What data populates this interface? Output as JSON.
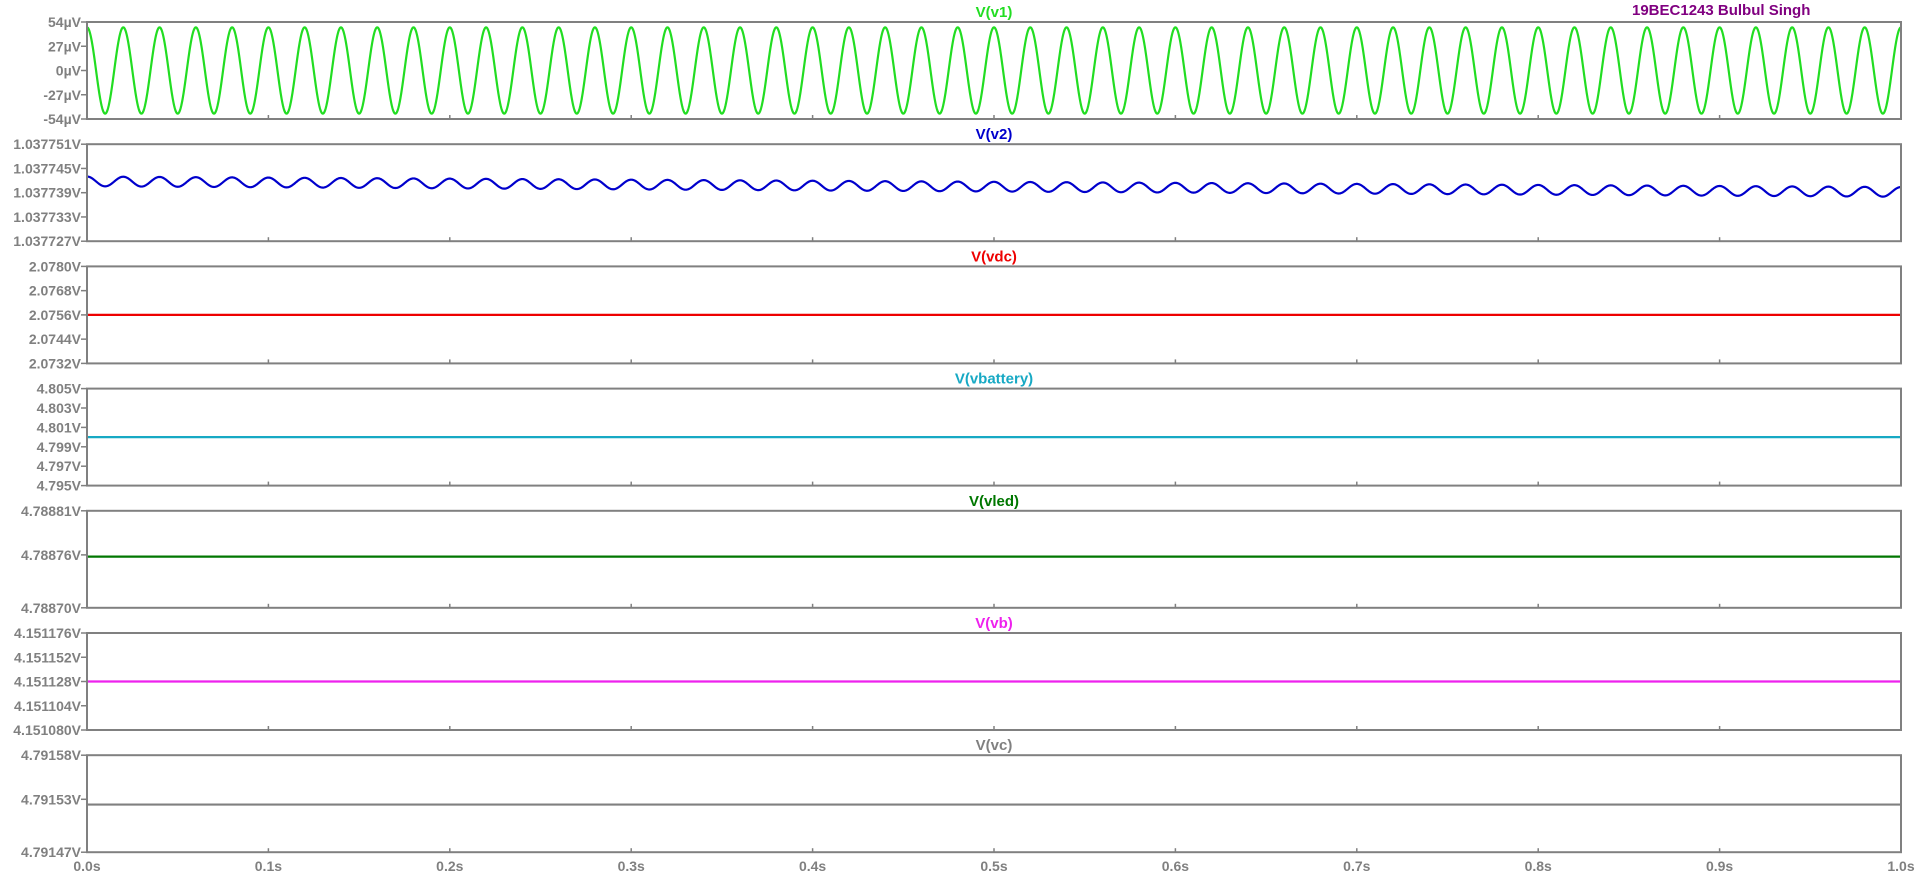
{
  "annotation": {
    "text": "19BEC1243 Bulbul Singh",
    "color": "#800080"
  },
  "chart_data": {
    "type": "line",
    "x_unit": "s",
    "xlim": [
      0.0,
      1.0
    ],
    "x_ticks": [
      {
        "value": 0.0,
        "label": "0.0s"
      },
      {
        "value": 0.1,
        "label": "0.1s"
      },
      {
        "value": 0.2,
        "label": "0.2s"
      },
      {
        "value": 0.3,
        "label": "0.3s"
      },
      {
        "value": 0.4,
        "label": "0.4s"
      },
      {
        "value": 0.5,
        "label": "0.5s"
      },
      {
        "value": 0.6,
        "label": "0.6s"
      },
      {
        "value": 0.7,
        "label": "0.7s"
      },
      {
        "value": 0.8,
        "label": "0.8s"
      },
      {
        "value": 0.9,
        "label": "0.9s"
      },
      {
        "value": 1.0,
        "label": "1.0s"
      }
    ],
    "panes": [
      {
        "title": "V(v1)",
        "color": "#22dd22",
        "ylim": [
          -5.4e-05,
          5.4e-05
        ],
        "y_ticks": [
          {
            "value": 5.4e-05,
            "label": "54µV"
          },
          {
            "value": 2.7e-05,
            "label": "27µV"
          },
          {
            "value": 0,
            "label": "0µV"
          },
          {
            "value": -2.7e-05,
            "label": "-27µV"
          },
          {
            "value": -5.4e-05,
            "label": "-54µV"
          }
        ],
        "signal": {
          "kind": "sine",
          "amplitude": 4.8e-05,
          "offset": 0,
          "cycles": 50,
          "phase_deg": 90
        }
      },
      {
        "title": "V(v2)",
        "color": "#0000cc",
        "ylim": [
          1.037727,
          1.037751
        ],
        "y_ticks": [
          {
            "value": 1.037751,
            "label": "1.037751V"
          },
          {
            "value": 1.037745,
            "label": "1.037745V"
          },
          {
            "value": 1.037739,
            "label": "1.037739V"
          },
          {
            "value": 1.037733,
            "label": "1.037733V"
          },
          {
            "value": 1.037727,
            "label": "1.037727V"
          }
        ],
        "signal": {
          "kind": "sine",
          "amplitude": 1.2e-06,
          "offset": 1.0377418,
          "drift_per_s": -2.6e-06,
          "cycles": 50,
          "phase_deg": 90
        }
      },
      {
        "title": "V(vdc)",
        "color": "#ee0000",
        "ylim": [
          2.0732,
          2.078
        ],
        "y_ticks": [
          {
            "value": 2.078,
            "label": "2.0780V"
          },
          {
            "value": 2.0768,
            "label": "2.0768V"
          },
          {
            "value": 2.0756,
            "label": "2.0756V"
          },
          {
            "value": 2.0744,
            "label": "2.0744V"
          },
          {
            "value": 2.0732,
            "label": "2.0732V"
          }
        ],
        "signal": {
          "kind": "constant",
          "value": 2.0756
        }
      },
      {
        "title": "V(vbattery)",
        "color": "#17a9c4",
        "ylim": [
          4.795,
          4.805
        ],
        "y_ticks": [
          {
            "value": 4.805,
            "label": "4.805V"
          },
          {
            "value": 4.803,
            "label": "4.803V"
          },
          {
            "value": 4.801,
            "label": "4.801V"
          },
          {
            "value": 4.799,
            "label": "4.799V"
          },
          {
            "value": 4.797,
            "label": "4.797V"
          },
          {
            "value": 4.795,
            "label": "4.795V"
          }
        ],
        "signal": {
          "kind": "constant",
          "value": 4.8
        }
      },
      {
        "title": "V(vled)",
        "color": "#007700",
        "ylim": [
          4.7887,
          4.78881
        ],
        "y_ticks": [
          {
            "value": 4.78881,
            "label": "4.78881V"
          },
          {
            "value": 4.78876,
            "label": "4.78876V"
          },
          {
            "value": 4.7887,
            "label": "4.78870V"
          }
        ],
        "signal": {
          "kind": "constant",
          "value": 4.788758
        }
      },
      {
        "title": "V(vb)",
        "color": "#ee22ee",
        "ylim": [
          4.15108,
          4.151176
        ],
        "y_ticks": [
          {
            "value": 4.151176,
            "label": "4.151176V"
          },
          {
            "value": 4.151152,
            "label": "4.151152V"
          },
          {
            "value": 4.151128,
            "label": "4.151128V"
          },
          {
            "value": 4.151104,
            "label": "4.151104V"
          },
          {
            "value": 4.15108,
            "label": "4.151080V"
          }
        ],
        "signal": {
          "kind": "constant",
          "value": 4.151128
        }
      },
      {
        "title": "V(vc)",
        "color": "#808080",
        "ylim": [
          4.79147,
          4.79158
        ],
        "y_ticks": [
          {
            "value": 4.79158,
            "label": "4.79158V"
          },
          {
            "value": 4.79153,
            "label": "4.79153V"
          },
          {
            "value": 4.79147,
            "label": "4.79147V"
          }
        ],
        "signal": {
          "kind": "constant",
          "value": 4.791524
        }
      }
    ]
  }
}
